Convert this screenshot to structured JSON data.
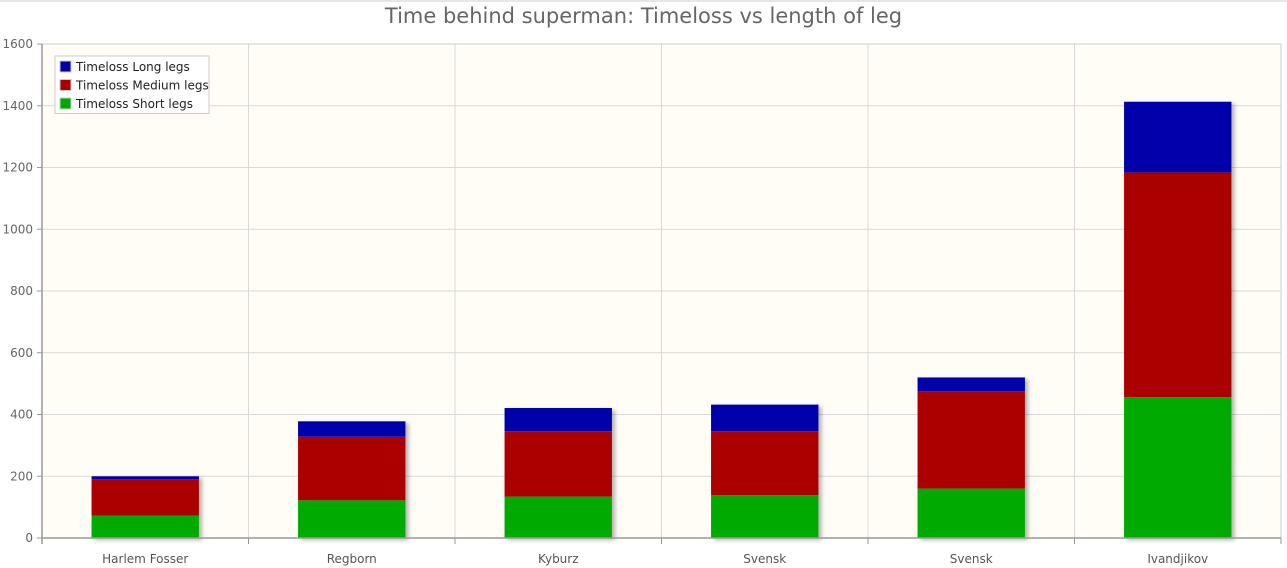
{
  "chart_data": {
    "type": "bar",
    "stacked": true,
    "title": "Time behind superman: Timeloss vs length of leg",
    "xlabel": "",
    "ylabel": "",
    "categories": [
      "Harlem Fosser",
      "Regborn",
      "Kyburz",
      "Svensk",
      "Svensk",
      "Ivandjikov"
    ],
    "series": [
      {
        "name": "Timeloss Short legs",
        "color": "#00aa00",
        "values": [
          72,
          122,
          134,
          139,
          160,
          456
        ]
      },
      {
        "name": "Timeloss Medium legs",
        "color": "#aa0000",
        "values": [
          118,
          206,
          212,
          207,
          315,
          728
        ]
      },
      {
        "name": "Timeloss Long legs",
        "color": "#0000aa",
        "values": [
          10,
          50,
          75,
          86,
          45,
          229
        ]
      }
    ],
    "legend_order": [
      "Timeloss Long legs",
      "Timeloss Medium legs",
      "Timeloss Short legs"
    ],
    "ylim": [
      0,
      1600
    ],
    "yticks": [
      0,
      200,
      400,
      600,
      800,
      1000,
      1200,
      1400,
      1600
    ],
    "grid": true,
    "legend_position": "top-left",
    "background_color": "#fffdf6"
  }
}
